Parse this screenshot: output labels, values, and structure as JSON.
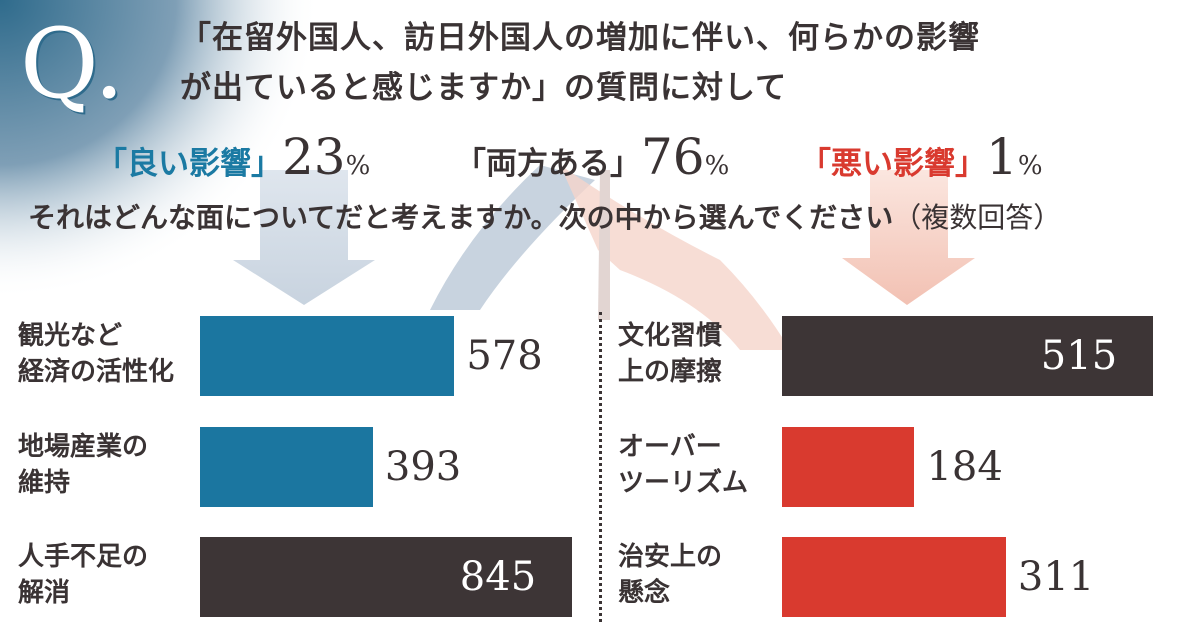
{
  "logo": "Q.",
  "title": {
    "line1": "「在留外国人、訪日外国人の増加に伴い、何らかの影響",
    "line2": "が出ていると感じますか」の質問に対して"
  },
  "results": [
    {
      "label": "「良い影響」",
      "value": "23",
      "unit": "%",
      "color": "#1b7aa3"
    },
    {
      "label": "「両方ある」",
      "value": "76",
      "unit": "%",
      "color": "#3a3334"
    },
    {
      "label": "「悪い影響」",
      "value": "1",
      "unit": "%",
      "color": "#d93a2f"
    }
  ],
  "subtitle": {
    "text": "それはどんな面についてだと考えますか。次の中から選んでください",
    "note": "（複数回答）"
  },
  "chart_data": {
    "type": "bar",
    "orientation": "horizontal",
    "panels": [
      {
        "name": "良い影響",
        "categories": [
          [
            "観光など",
            "経済の活性化"
          ],
          [
            "地場産業の",
            "維持"
          ],
          [
            "人手不足の",
            "解消"
          ]
        ],
        "values": [
          578,
          393,
          845
        ],
        "colors": [
          "#1b76a0",
          "#1b76a0",
          "#3d3536"
        ]
      },
      {
        "name": "悪い影響",
        "categories": [
          [
            "文化習慣",
            "上の摩擦"
          ],
          [
            "オーバー",
            "ツーリズム"
          ],
          [
            "治安上の",
            "懸念"
          ]
        ],
        "values": [
          515,
          184,
          311
        ],
        "colors": [
          "#3d3536",
          "#d93a2f",
          "#d93a2f"
        ]
      }
    ]
  }
}
